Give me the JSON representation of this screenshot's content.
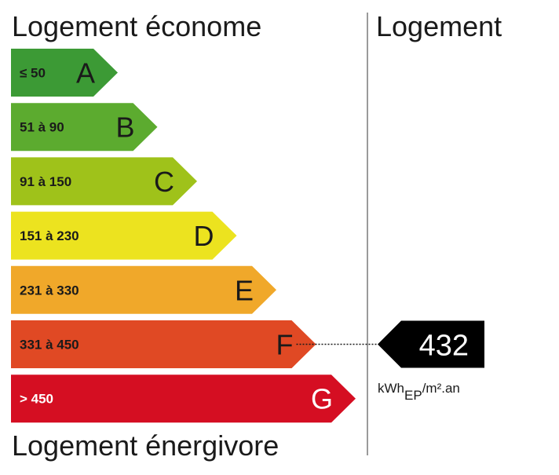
{
  "labels": {
    "top": "Logement économe",
    "bottom": "Logement énergivore",
    "column": "Logement"
  },
  "chart_data": {
    "type": "bar",
    "categories": [
      "A",
      "B",
      "C",
      "D",
      "E",
      "F",
      "G"
    ],
    "ranges": [
      "≤ 50",
      "51 à 90",
      "91 à 150",
      "151 à 230",
      "231 à 330",
      "331 à 450",
      "> 450"
    ],
    "colors": [
      "#3c9a35",
      "#5cab2f",
      "#9fc21a",
      "#ece31f",
      "#f0a82a",
      "#e04924",
      "#d50e22"
    ],
    "value": 432,
    "value_class": "F",
    "unit": {
      "main": "kWh",
      "sub": "EP",
      "rest": "/m².an"
    }
  }
}
